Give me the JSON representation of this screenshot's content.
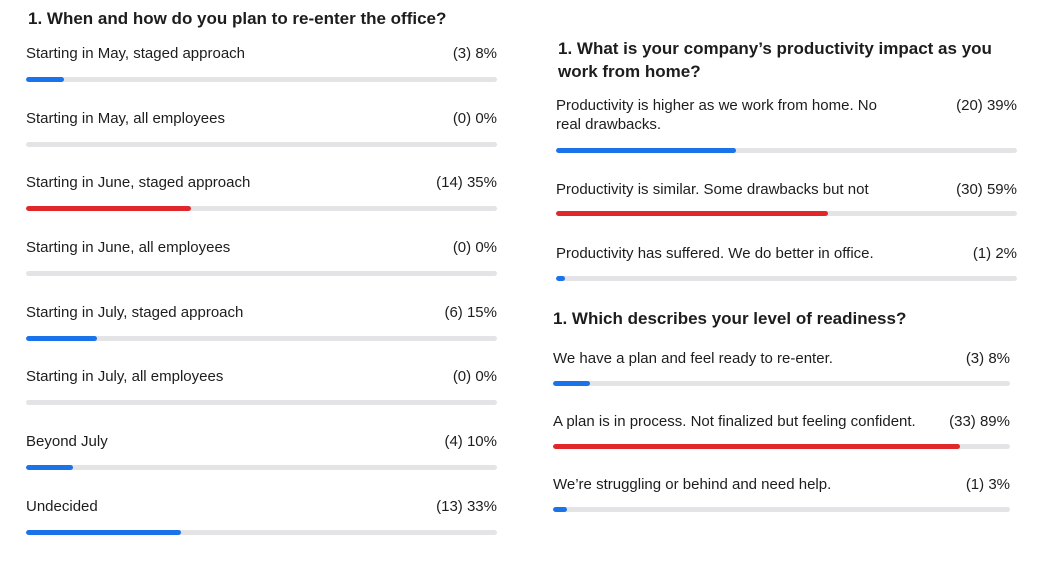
{
  "colors": {
    "blue": "#1a73e8",
    "red": "#e0282c",
    "track": "#e4e4e7"
  },
  "polls": [
    {
      "title": "1. When and how do you plan to re-enter the office?",
      "options": [
        {
          "label": "Starting in May, staged approach",
          "value_text": "(3) 8%",
          "percent": 8,
          "color": "#1a73e8"
        },
        {
          "label": "Starting in May, all employees",
          "value_text": "(0) 0%",
          "percent": 0,
          "color": "#1a73e8"
        },
        {
          "label": "Starting in June, staged approach",
          "value_text": "(14) 35%",
          "percent": 35,
          "color": "#e0282c"
        },
        {
          "label": "Starting in June, all employees",
          "value_text": "(0) 0%",
          "percent": 0,
          "color": "#1a73e8"
        },
        {
          "label": "Starting in July, staged approach",
          "value_text": "(6) 15%",
          "percent": 15,
          "color": "#1a73e8"
        },
        {
          "label": "Starting in July, all employees",
          "value_text": "(0) 0%",
          "percent": 0,
          "color": "#1a73e8"
        },
        {
          "label": "Beyond July",
          "value_text": "(4) 10%",
          "percent": 10,
          "color": "#1a73e8"
        },
        {
          "label": "Undecided",
          "value_text": "(13) 33%",
          "percent": 33,
          "color": "#1a73e8"
        }
      ]
    },
    {
      "title": "1. What is your company’s productivity impact as you work from home?",
      "options": [
        {
          "label": "Productivity is higher as we work from home. No real drawbacks.",
          "value_text": "(20) 39%",
          "percent": 39,
          "color": "#1a73e8"
        },
        {
          "label": "Productivity is similar. Some drawbacks but not",
          "value_text": "(30) 59%",
          "percent": 59,
          "color": "#e0282c"
        },
        {
          "label": "Productivity has suffered. We do better in office.",
          "value_text": "(1) 2%",
          "percent": 2,
          "color": "#1a73e8"
        }
      ]
    },
    {
      "title": "1. Which describes your level of readiness?",
      "options": [
        {
          "label": "We have a plan and feel ready to re-enter.",
          "value_text": "(3) 8%",
          "percent": 8,
          "color": "#1a73e8"
        },
        {
          "label": "A plan is in process. Not finalized but feeling confident.",
          "value_text": "(33) 89%",
          "percent": 89,
          "color": "#e0282c"
        },
        {
          "label": "We’re struggling or behind and need help.",
          "value_text": "(1) 3%",
          "percent": 3,
          "color": "#1a73e8"
        }
      ]
    }
  ]
}
